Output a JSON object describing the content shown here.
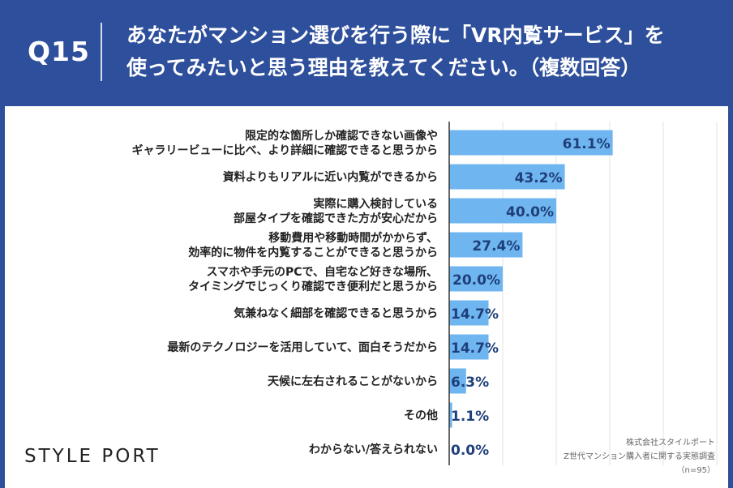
{
  "header": {
    "question_number": "Q15",
    "title_line1": "あなたがマンション選びを行う際に「VR内覧サービス」を",
    "title_line2": "使ってみたいと思う理由を教えてください。（複数回答）"
  },
  "brand": "STYLE PORT",
  "source": {
    "line1": "株式会社スタイルポート",
    "line2": "Z世代マンション購入者に関する実態調査",
    "line3": "（n=95）"
  },
  "colors": {
    "header_bg": "#2e4f9b",
    "bar": "#6fb6f1",
    "value_text": "#1f3f7a"
  },
  "chart_data": {
    "type": "bar",
    "orientation": "horizontal",
    "categories": [
      [
        "限定的な箇所しか確認できない画像や",
        "ギャラリービューに比べ、より詳細に確認できると思うから"
      ],
      [
        "資料よりもリアルに近い内覧ができるから"
      ],
      [
        "実際に購入検討している",
        "部屋タイプを確認できた方が安心だから"
      ],
      [
        "移動費用や移動時間がかからず、",
        "効率的に物件を内覧することができると思うから"
      ],
      [
        "スマホや手元のPCで、自宅など好きな場所、",
        "タイミングでじっくり確認でき便利だと思うから"
      ],
      [
        "気兼ねなく細部を確認できると思うから"
      ],
      [
        "最新のテクノロジーを活用していて、面白そうだから"
      ],
      [
        "天候に左右されることがないから"
      ],
      [
        "その他"
      ],
      [
        "わからない/答えられない"
      ]
    ],
    "values": [
      61.1,
      43.2,
      40.0,
      27.4,
      20.0,
      14.7,
      14.7,
      6.3,
      1.1,
      0.0
    ],
    "value_labels": [
      "61.1%",
      "43.2%",
      "40.0%",
      "27.4%",
      "20.0%",
      "14.7%",
      "14.7%",
      "6.3%",
      "1.1%",
      "0.0%"
    ],
    "xlim": [
      0,
      100
    ],
    "grid": true,
    "unit": "%"
  }
}
